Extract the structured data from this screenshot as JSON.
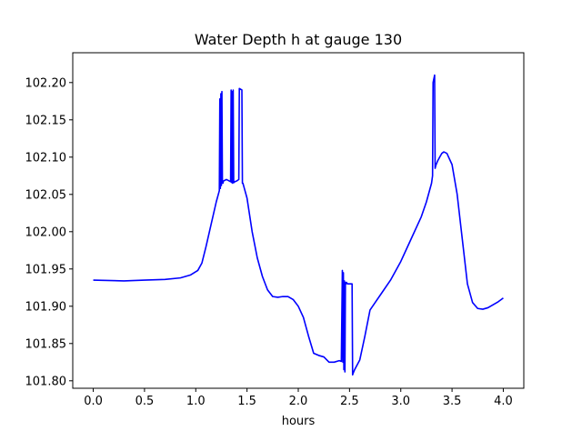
{
  "chart_data": {
    "type": "line",
    "title": "Water Depth h at gauge 130",
    "xlabel": "hours",
    "ylabel": "",
    "xlim": [
      -0.2,
      4.2
    ],
    "ylim": [
      101.79,
      102.24
    ],
    "grid": false,
    "x_ticks": [
      0.0,
      0.5,
      1.0,
      1.5,
      2.0,
      2.5,
      3.0,
      3.5,
      4.0
    ],
    "x_tick_labels": [
      "0.0",
      "0.5",
      "1.0",
      "1.5",
      "2.0",
      "2.5",
      "3.0",
      "3.5",
      "4.0"
    ],
    "y_ticks": [
      101.8,
      101.85,
      101.9,
      101.95,
      102.0,
      102.05,
      102.1,
      102.15,
      102.2
    ],
    "y_tick_labels": [
      "101.80",
      "101.85",
      "101.90",
      "101.95",
      "102.00",
      "102.05",
      "102.10",
      "102.15",
      "102.20"
    ],
    "series": [
      {
        "color": "#0000ff",
        "x": [
          0.0,
          0.3,
          0.5,
          0.7,
          0.85,
          0.95,
          1.02,
          1.06,
          1.1,
          1.15,
          1.2,
          1.23,
          1.235,
          1.24,
          1.245,
          1.25,
          1.255,
          1.26,
          1.265,
          1.27,
          1.3,
          1.34,
          1.345,
          1.35,
          1.355,
          1.36,
          1.365,
          1.37,
          1.375,
          1.38,
          1.4,
          1.42,
          1.425,
          1.45,
          1.455,
          1.46,
          1.47,
          1.5,
          1.55,
          1.6,
          1.65,
          1.7,
          1.75,
          1.8,
          1.85,
          1.9,
          1.95,
          2.0,
          2.05,
          2.1,
          2.15,
          2.2,
          2.25,
          2.3,
          2.35,
          2.4,
          2.42,
          2.43,
          2.435,
          2.44,
          2.445,
          2.45,
          2.455,
          2.46,
          2.465,
          2.47,
          2.48,
          2.49,
          2.5,
          2.51,
          2.52,
          2.525,
          2.53,
          2.535,
          2.55,
          2.6,
          2.65,
          2.7,
          2.75,
          2.8,
          2.9,
          3.0,
          3.1,
          3.2,
          3.25,
          3.3,
          3.31,
          3.315,
          3.33,
          3.335,
          3.34,
          3.345,
          3.36,
          3.38,
          3.4,
          3.42,
          3.45,
          3.5,
          3.55,
          3.6,
          3.65,
          3.7,
          3.75,
          3.8,
          3.85,
          3.9,
          3.95,
          4.0
        ],
        "y": [
          101.935,
          101.934,
          101.935,
          101.936,
          101.938,
          101.942,
          101.948,
          101.958,
          101.98,
          102.01,
          102.04,
          102.055,
          102.178,
          102.058,
          102.185,
          102.062,
          102.188,
          102.065,
          102.065,
          102.068,
          102.07,
          102.067,
          102.19,
          102.066,
          102.188,
          102.065,
          102.19,
          102.066,
          102.066,
          102.067,
          102.068,
          102.07,
          102.192,
          102.19,
          102.065,
          102.065,
          102.06,
          102.045,
          102.0,
          101.965,
          101.94,
          101.922,
          101.913,
          101.912,
          101.913,
          101.913,
          101.909,
          101.9,
          101.885,
          101.86,
          101.837,
          101.834,
          101.832,
          101.825,
          101.825,
          101.827,
          101.826,
          101.948,
          101.825,
          101.945,
          101.815,
          101.934,
          101.812,
          101.932,
          101.93,
          101.932,
          101.93,
          101.93,
          101.93,
          101.93,
          101.93,
          101.93,
          101.808,
          101.81,
          101.815,
          101.828,
          101.86,
          101.895,
          101.905,
          101.915,
          101.935,
          101.96,
          101.99,
          102.02,
          102.04,
          102.065,
          102.075,
          102.2,
          102.21,
          102.085,
          102.088,
          102.09,
          102.095,
          102.1,
          102.105,
          102.107,
          102.105,
          102.09,
          102.05,
          101.99,
          101.93,
          101.905,
          101.897,
          101.896,
          101.898,
          101.902,
          101.906,
          101.911
        ]
      }
    ]
  }
}
